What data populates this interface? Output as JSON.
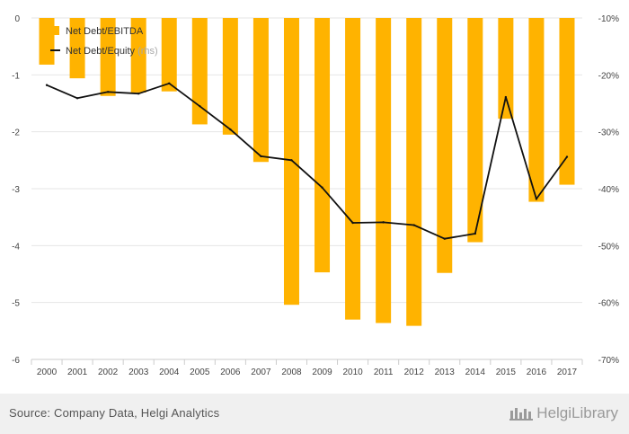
{
  "chart_data": {
    "type": "bar",
    "categories": [
      "2000",
      "2001",
      "2002",
      "2003",
      "2004",
      "2005",
      "2006",
      "2007",
      "2008",
      "2009",
      "2010",
      "2011",
      "2012",
      "2013",
      "2014",
      "2015",
      "2016",
      "2017"
    ],
    "series": [
      {
        "name": "Net Debt/EBITDA",
        "type": "bar",
        "axis": "left",
        "color": "#FFB300",
        "values": [
          -0.82,
          -1.06,
          -1.37,
          -1.31,
          -1.29,
          -1.87,
          -2.05,
          -2.53,
          -5.04,
          -4.47,
          -5.3,
          -5.36,
          -5.41,
          -4.48,
          -3.94,
          -1.77,
          -3.23,
          -2.93
        ]
      },
      {
        "name": "Net Debt/Equity",
        "legend_suffix": "(rhs)",
        "type": "line",
        "axis": "right",
        "color": "#111111",
        "unit": "%",
        "values": [
          -21.8,
          -24.1,
          -23.0,
          -23.3,
          -21.5,
          -25.5,
          -29.6,
          -34.3,
          -35.0,
          -39.8,
          -46.0,
          -45.9,
          -46.4,
          -48.8,
          -47.9,
          -23.9,
          -41.8,
          -34.4
        ]
      }
    ],
    "left_axis": {
      "ylim": [
        -6,
        0
      ],
      "ticks": [
        "0",
        "-1",
        "-2",
        "-3",
        "-4",
        "-5",
        "-6"
      ]
    },
    "right_axis": {
      "ylim": [
        -70,
        -10
      ],
      "ticks": [
        "-10%",
        "-20%",
        "-30%",
        "-40%",
        "-50%",
        "-60%",
        "-70%"
      ]
    },
    "grid": true,
    "legend": "top-left"
  },
  "footer": {
    "source": "Source: Company Data, Helgi Analytics",
    "brand": "HelgiLibrary"
  }
}
